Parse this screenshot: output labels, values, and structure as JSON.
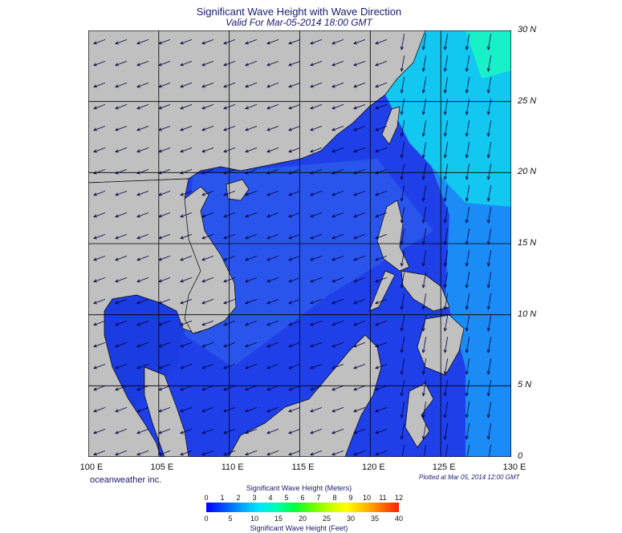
{
  "title": "Significant Wave Height with Wave Direction",
  "subtitle": "Valid For Mar-05-2014 18:00 GMT",
  "credit": "oceanweather inc.",
  "plotted": "Plotted at Mar 05, 2014 12:00 GMT",
  "lat_labels": [
    "30 N",
    "25 N",
    "20 N",
    "15 N",
    "10 N",
    "5 N",
    "0"
  ],
  "lon_labels": [
    "100 E",
    "105 E",
    "110 E",
    "115 E",
    "120 E",
    "125 E",
    "130 E"
  ],
  "colorbar": {
    "title_top": "Significant Wave Height (Meters)",
    "title_bottom": "Significant Wave Height (Feet)",
    "meters": [
      "0",
      "1",
      "2",
      "3",
      "4",
      "5",
      "6",
      "7",
      "8",
      "9",
      "10",
      "11",
      "12"
    ],
    "feet": [
      "0",
      "5",
      "10",
      "15",
      "20",
      "25",
      "30",
      "35",
      "40"
    ],
    "colors": [
      "#0000ff",
      "#0050ff",
      "#00a0ff",
      "#00e6ff",
      "#00ffb0",
      "#00ff40",
      "#60ff00",
      "#c0ff00",
      "#ffff00",
      "#ffc000",
      "#ff7000",
      "#ff2000"
    ]
  },
  "colors": {
    "land": "#c0c0c0",
    "sea_deep": "#1f3fe8",
    "sea_mid": "#2a6cf0",
    "sea_high": "#12c8f0",
    "sea_peak": "#18f0c8",
    "arrow": "#000040"
  }
}
